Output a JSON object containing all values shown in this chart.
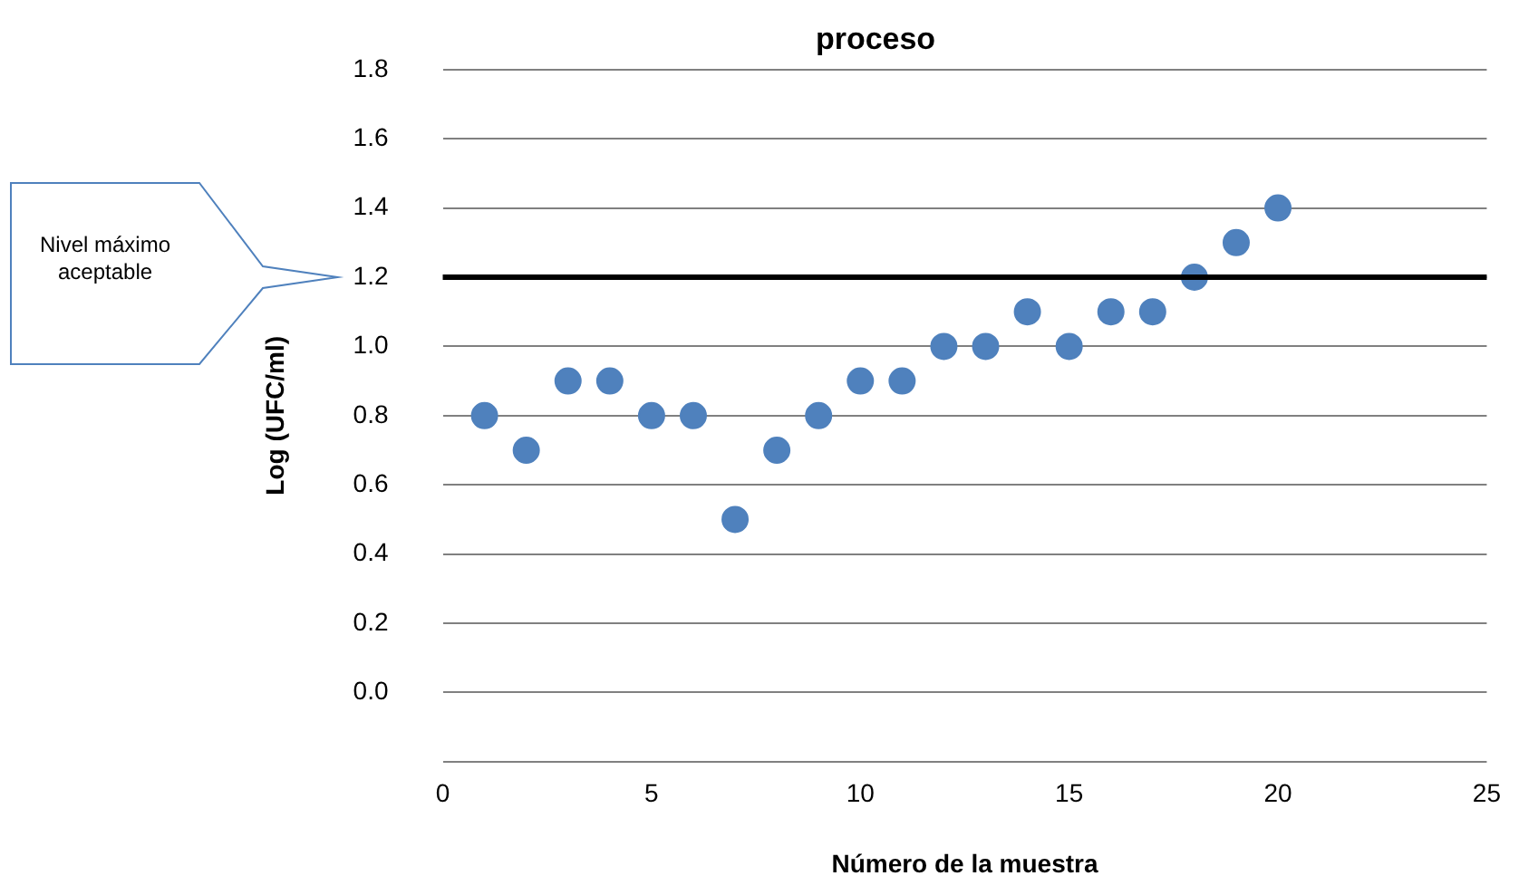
{
  "chart_data": {
    "type": "scatter",
    "title": "proceso",
    "xlabel": "Número de la muestra",
    "ylabel": "Log (UFC/ml)",
    "x": [
      1,
      2,
      3,
      4,
      5,
      6,
      7,
      8,
      9,
      10,
      11,
      12,
      13,
      14,
      15,
      16,
      17,
      18,
      19,
      20
    ],
    "series": [
      {
        "color": "#4f81bd",
        "values": [
          0.8,
          0.7,
          0.9,
          0.9,
          0.8,
          0.8,
          0.5,
          0.7,
          0.8,
          0.9,
          0.9,
          1.0,
          1.0,
          1.1,
          1.0,
          1.1,
          1.1,
          1.2,
          1.3,
          1.4
        ]
      }
    ],
    "xlim": [
      0,
      25
    ],
    "xticks": [
      0,
      5,
      10,
      15,
      20,
      25
    ],
    "ylim": [
      -0.2,
      1.8
    ],
    "yticks": [
      {
        "value": -0.2,
        "label": null
      },
      {
        "value": 0,
        "label": "0.0"
      },
      {
        "value": 0.2,
        "label": "0.2"
      },
      {
        "value": 0.4,
        "label": "0.4"
      },
      {
        "value": 0.6,
        "label": "0.6"
      },
      {
        "value": 0.8,
        "label": "0.8"
      },
      {
        "value": 1,
        "label": "1.0"
      },
      {
        "value": 1.2,
        "label": "1.2"
      },
      {
        "value": 1.4,
        "label": "1.4"
      },
      {
        "value": 1.6,
        "label": "1.6"
      },
      {
        "value": 1.8,
        "label": "1.8"
      }
    ],
    "ref_lines": [
      {
        "axis": "y",
        "value": 1.2,
        "label": "Nivel máximo aceptable",
        "color": "#000000"
      }
    ],
    "grid": "y",
    "legend": false,
    "marker": "circle"
  }
}
